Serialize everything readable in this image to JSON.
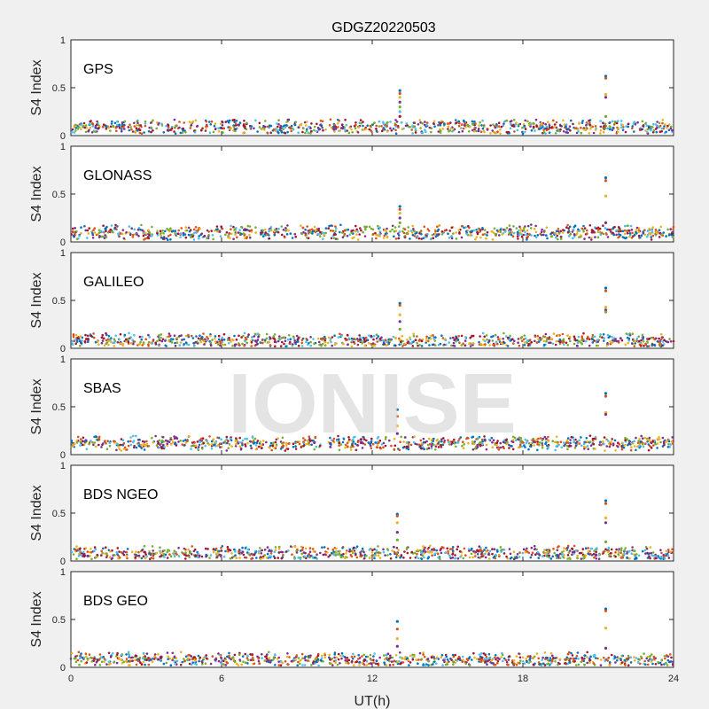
{
  "chart_data": {
    "type": "scatter",
    "title": "GDGZ20220503",
    "xlabel": "UT(h)",
    "ylabel": "S4 Index",
    "xlim": [
      0,
      24
    ],
    "ylim": [
      0,
      1
    ],
    "xticks": [
      0,
      6,
      12,
      18,
      24
    ],
    "yticks": [
      0,
      0.5,
      1
    ],
    "watermark": "IONISE",
    "colors": [
      "#0072bd",
      "#d95319",
      "#edb120",
      "#7e2f8e",
      "#77ac30",
      "#4dbeee",
      "#a2142f"
    ],
    "panels": [
      {
        "name": "GPS",
        "baseline": 0.09,
        "spikes": [
          {
            "x": 13.1,
            "values": [
              0.47,
              0.44,
              0.4,
              0.35,
              0.3,
              0.25,
              0.2
            ]
          },
          {
            "x": 21.3,
            "values": [
              0.62,
              0.6,
              0.43,
              0.4,
              0.2
            ]
          }
        ]
      },
      {
        "name": "GLONASS",
        "baseline": 0.1,
        "spikes": [
          {
            "x": 13.1,
            "values": [
              0.37,
              0.34,
              0.3,
              0.25,
              0.2
            ]
          },
          {
            "x": 21.3,
            "values": [
              0.67,
              0.64,
              0.48,
              0.2
            ]
          }
        ]
      },
      {
        "name": "GALILEO",
        "baseline": 0.08,
        "spikes": [
          {
            "x": 13.1,
            "values": [
              0.47,
              0.45,
              0.35,
              0.28,
              0.2
            ]
          },
          {
            "x": 21.3,
            "values": [
              0.63,
              0.6,
              0.43,
              0.4,
              0.38
            ]
          }
        ]
      },
      {
        "name": "SBAS",
        "baseline": 0.12,
        "spikes": [
          {
            "x": 13.0,
            "values": [
              0.47,
              0.4,
              0.3,
              0.22
            ]
          },
          {
            "x": 21.3,
            "values": [
              0.64,
              0.61,
              0.44,
              0.42
            ]
          }
        ]
      },
      {
        "name": "BDS NGEO",
        "baseline": 0.08,
        "spikes": [
          {
            "x": 13.0,
            "values": [
              0.49,
              0.47,
              0.4,
              0.3,
              0.22
            ]
          },
          {
            "x": 21.3,
            "values": [
              0.63,
              0.6,
              0.45,
              0.4,
              0.2
            ]
          }
        ]
      },
      {
        "name": "BDS GEO",
        "baseline": 0.08,
        "spikes": [
          {
            "x": 13.0,
            "values": [
              0.48,
              0.4,
              0.3,
              0.22
            ]
          },
          {
            "x": 21.3,
            "values": [
              0.61,
              0.59,
              0.41,
              0.2
            ]
          }
        ]
      }
    ]
  }
}
